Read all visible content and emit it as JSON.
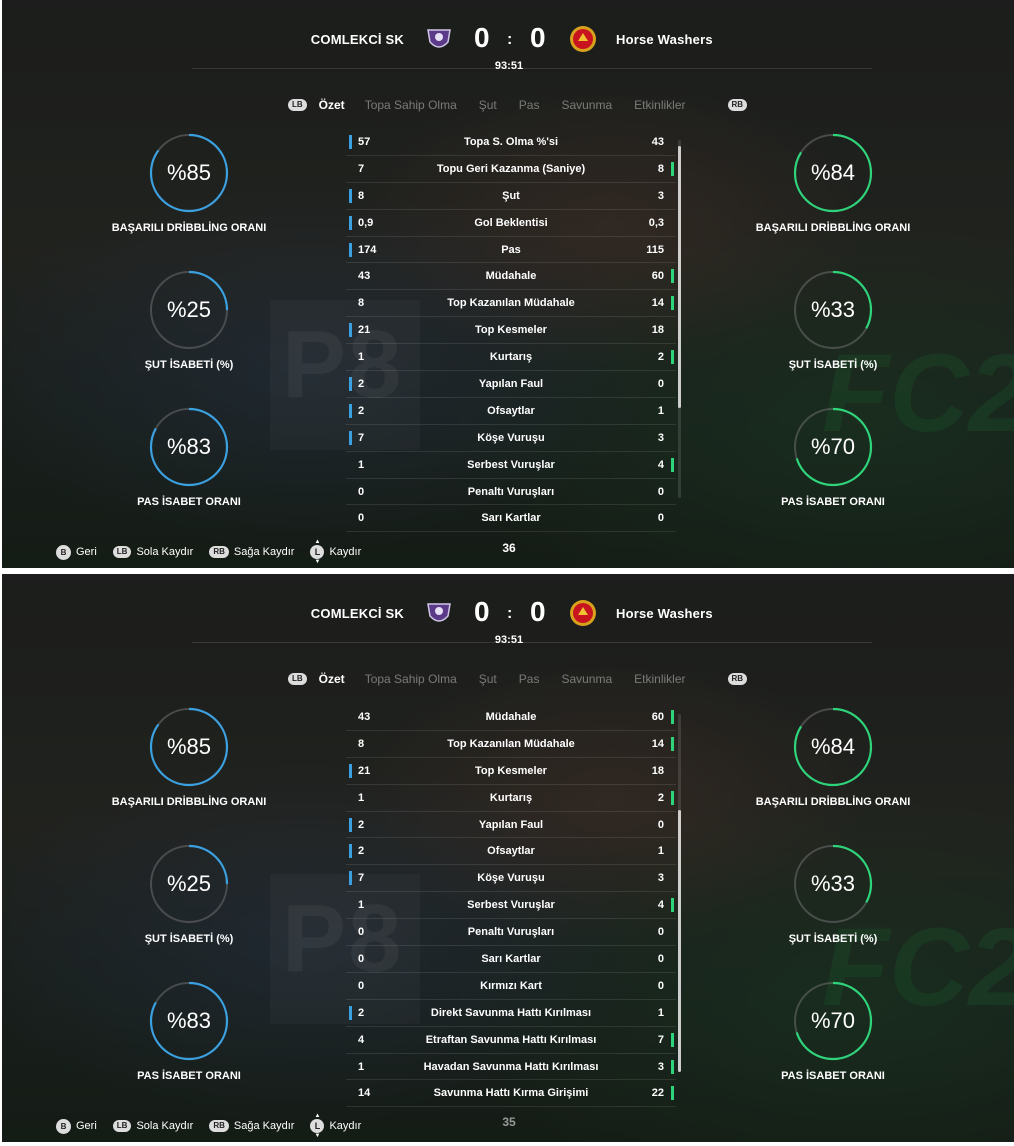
{
  "colors": {
    "home_ring": "#3aa0e0",
    "away_ring": "#2ed47a",
    "track": "#6e6e6e"
  },
  "match": {
    "home_team": "COMLEKCİ SK",
    "away_team": "Horse Washers",
    "home_score": "0",
    "away_score": "0",
    "separator": ":",
    "clock": "93:51",
    "home_crest_icon": "purple-shield-crest-icon",
    "away_crest_icon": "red-devil-crest-icon"
  },
  "tabs": {
    "left_button": "LB",
    "right_button": "RB",
    "items": [
      "Özet",
      "Topa Sahip Olma",
      "Şut",
      "Pas",
      "Savunma",
      "Etkinlikler"
    ],
    "active": "Özet"
  },
  "rings": {
    "home": [
      {
        "value": "%85",
        "pct": 85,
        "label": "BAŞARILI DRİBBLİNG ORANI"
      },
      {
        "value": "%25",
        "pct": 25,
        "label": "ŞUT İSABETİ (%)"
      },
      {
        "value": "%83",
        "pct": 83,
        "label": "PAS İSABET ORANI"
      }
    ],
    "away": [
      {
        "value": "%84",
        "pct": 84,
        "label": "BAŞARILI DRİBBLİNG ORANI"
      },
      {
        "value": "%33",
        "pct": 33,
        "label": "ŞUT İSABETİ (%)"
      },
      {
        "value": "%70",
        "pct": 70,
        "label": "PAS İSABET ORANI"
      }
    ]
  },
  "stats_page1": [
    {
      "home": "57",
      "name": "Topa S. Olma %'si",
      "away": "43",
      "lead": "home"
    },
    {
      "home": "7",
      "name": "Topu Geri Kazanma (Saniye)",
      "away": "8",
      "lead": "away"
    },
    {
      "home": "8",
      "name": "Şut",
      "away": "3",
      "lead": "home"
    },
    {
      "home": "0,9",
      "name": "Gol Beklentisi",
      "away": "0,3",
      "lead": "home"
    },
    {
      "home": "174",
      "name": "Pas",
      "away": "115",
      "lead": "home"
    },
    {
      "home": "43",
      "name": "Müdahale",
      "away": "60",
      "lead": "away"
    },
    {
      "home": "8",
      "name": "Top Kazanılan Müdahale",
      "away": "14",
      "lead": "away"
    },
    {
      "home": "21",
      "name": "Top Kesmeler",
      "away": "18",
      "lead": "home"
    },
    {
      "home": "1",
      "name": "Kurtarış",
      "away": "2",
      "lead": "away"
    },
    {
      "home": "2",
      "name": "Yapılan Faul",
      "away": "0",
      "lead": "home"
    },
    {
      "home": "2",
      "name": "Ofsaytlar",
      "away": "1",
      "lead": "home"
    },
    {
      "home": "7",
      "name": "Köşe Vuruşu",
      "away": "3",
      "lead": "home"
    },
    {
      "home": "1",
      "name": "Serbest Vuruşlar",
      "away": "4",
      "lead": "away"
    },
    {
      "home": "0",
      "name": "Penaltı Vuruşları",
      "away": "0",
      "lead": "none"
    },
    {
      "home": "0",
      "name": "Sarı Kartlar",
      "away": "0",
      "lead": "none"
    }
  ],
  "stats_page2": [
    {
      "home": "43",
      "name": "Müdahale",
      "away": "60",
      "lead": "away"
    },
    {
      "home": "8",
      "name": "Top Kazanılan Müdahale",
      "away": "14",
      "lead": "away"
    },
    {
      "home": "21",
      "name": "Top Kesmeler",
      "away": "18",
      "lead": "home"
    },
    {
      "home": "1",
      "name": "Kurtarış",
      "away": "2",
      "lead": "away"
    },
    {
      "home": "2",
      "name": "Yapılan Faul",
      "away": "0",
      "lead": "home"
    },
    {
      "home": "2",
      "name": "Ofsaytlar",
      "away": "1",
      "lead": "home"
    },
    {
      "home": "7",
      "name": "Köşe Vuruşu",
      "away": "3",
      "lead": "home"
    },
    {
      "home": "1",
      "name": "Serbest Vuruşlar",
      "away": "4",
      "lead": "away"
    },
    {
      "home": "0",
      "name": "Penaltı Vuruşları",
      "away": "0",
      "lead": "none"
    },
    {
      "home": "0",
      "name": "Sarı Kartlar",
      "away": "0",
      "lead": "none"
    },
    {
      "home": "0",
      "name": "Kırmızı Kart",
      "away": "0",
      "lead": "none"
    },
    {
      "home": "2",
      "name": "Direkt Savunma Hattı Kırılması",
      "away": "1",
      "lead": "home"
    },
    {
      "home": "4",
      "name": "Etraftan Savunma Hattı Kırılması",
      "away": "7",
      "lead": "away"
    },
    {
      "home": "1",
      "name": "Havadan Savunma Hattı Kırılması",
      "away": "3",
      "lead": "away"
    },
    {
      "home": "14",
      "name": "Savunma Hattı Kırma Girişimi",
      "away": "22",
      "lead": "away"
    }
  ],
  "footer": {
    "back_key": "B",
    "back_label": "Geri",
    "left_key": "LB",
    "left_label": "Sola Kaydır",
    "right_key": "RB",
    "right_label": "Sağa Kaydır",
    "scroll_key": "L",
    "scroll_label": "Kaydır",
    "page1_number": "36",
    "page2_number": "35"
  },
  "background": {
    "board_text": "P8",
    "brand_text": "FC2"
  }
}
